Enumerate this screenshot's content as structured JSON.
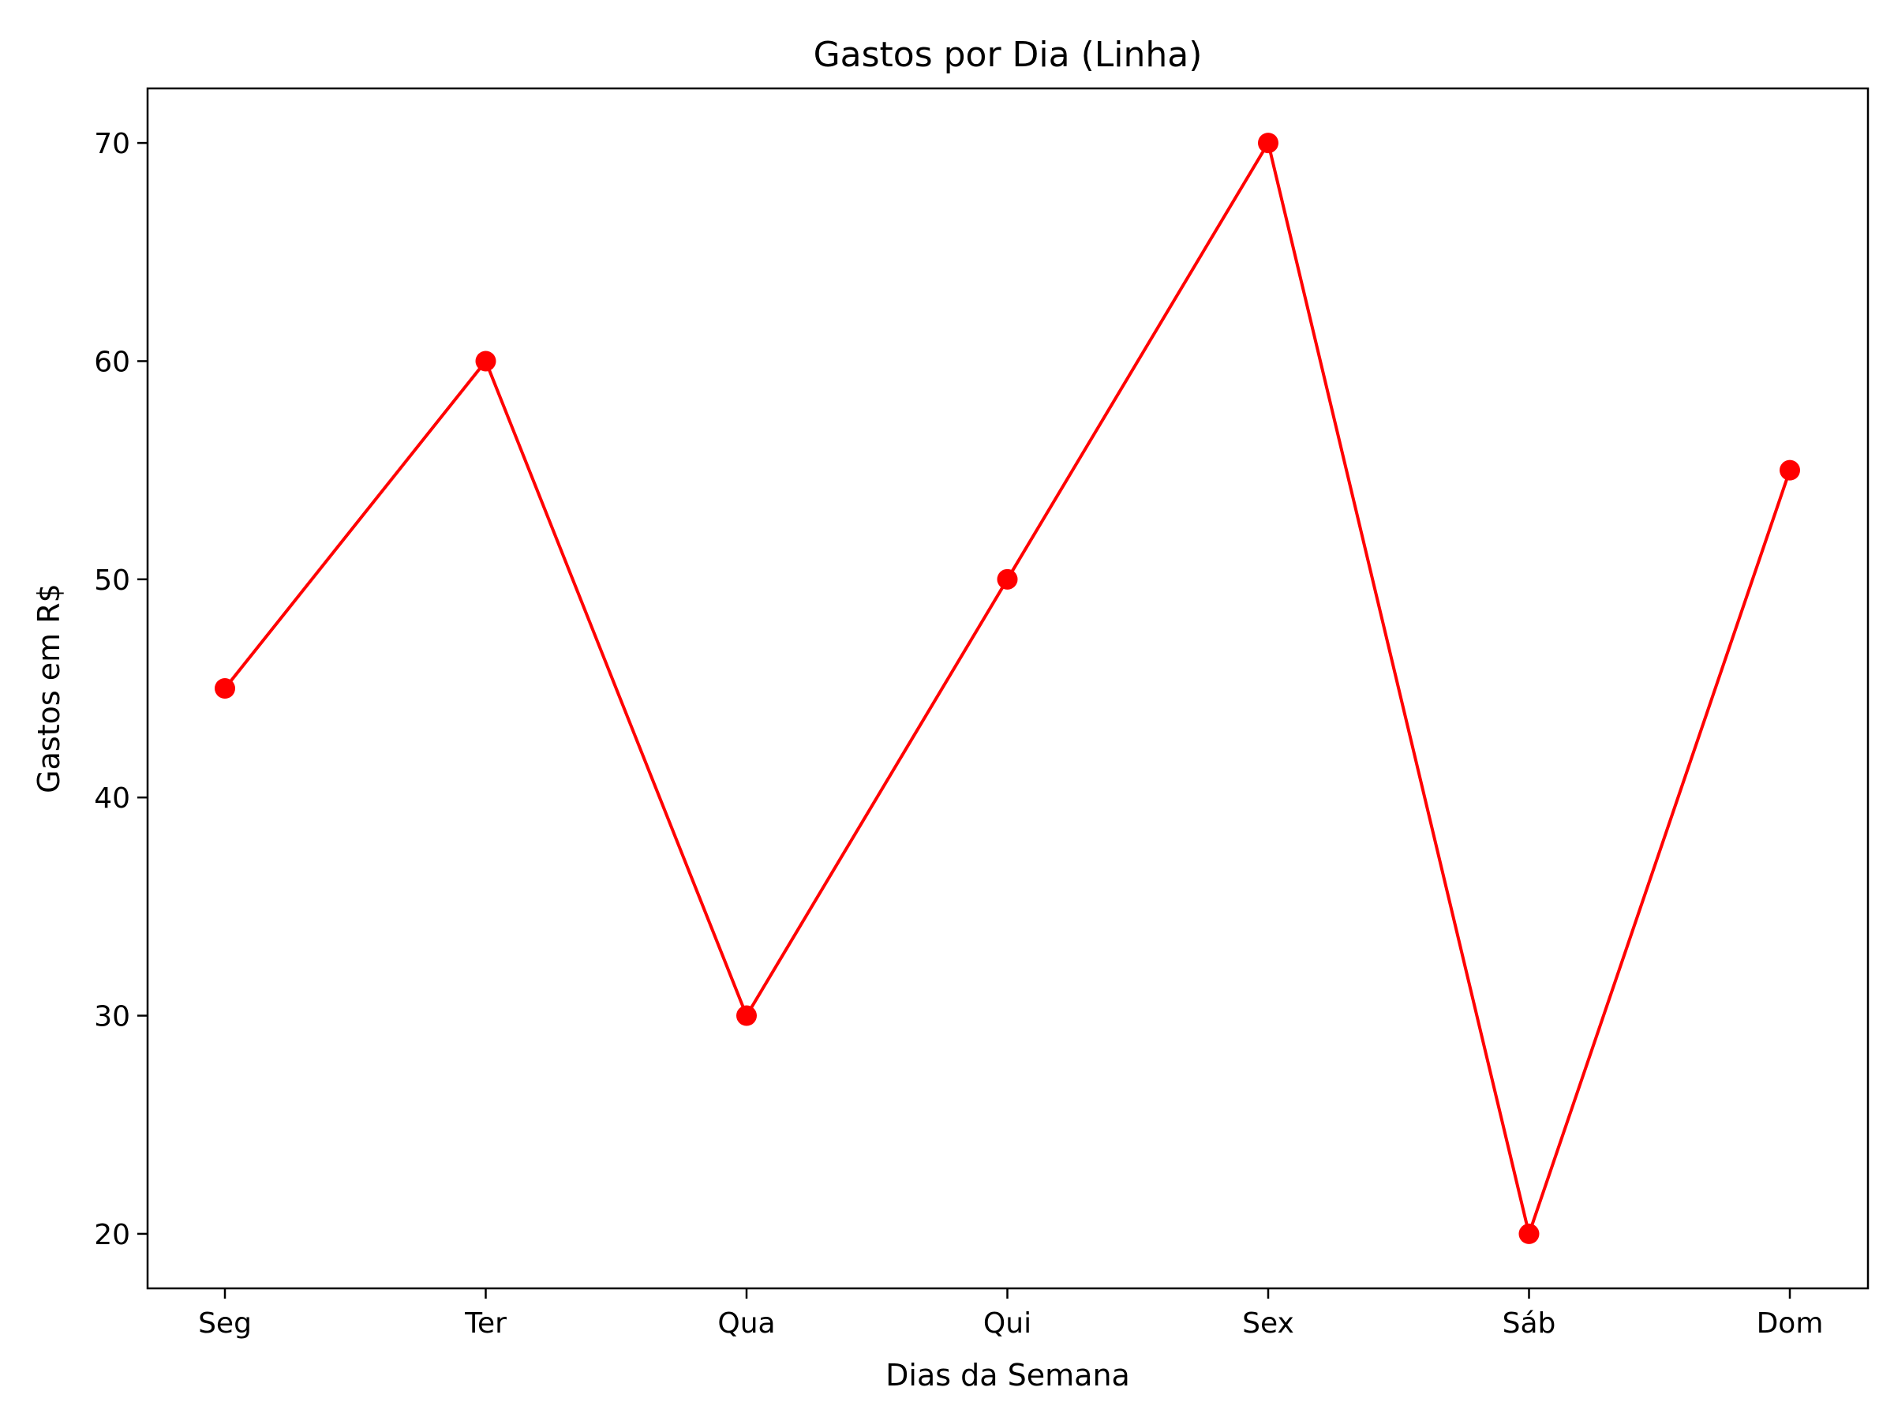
{
  "chart_data": {
    "type": "line",
    "title": "Gastos por Dia (Linha)",
    "xlabel": "Dias da Semana",
    "ylabel": "Gastos em R$",
    "categories": [
      "Seg",
      "Ter",
      "Qua",
      "Qui",
      "Sex",
      "Sáb",
      "Dom"
    ],
    "series": [
      {
        "values": [
          45,
          60,
          30,
          50,
          70,
          20,
          55
        ]
      }
    ],
    "ylim": [
      17.5,
      72.5
    ],
    "yticks": [
      20,
      30,
      40,
      50,
      60,
      70
    ],
    "grid": false,
    "legend": "none",
    "colors": {
      "line": "#ff0000",
      "marker": "#ff0000",
      "axes": "#000000",
      "background": "#ffffff"
    }
  }
}
